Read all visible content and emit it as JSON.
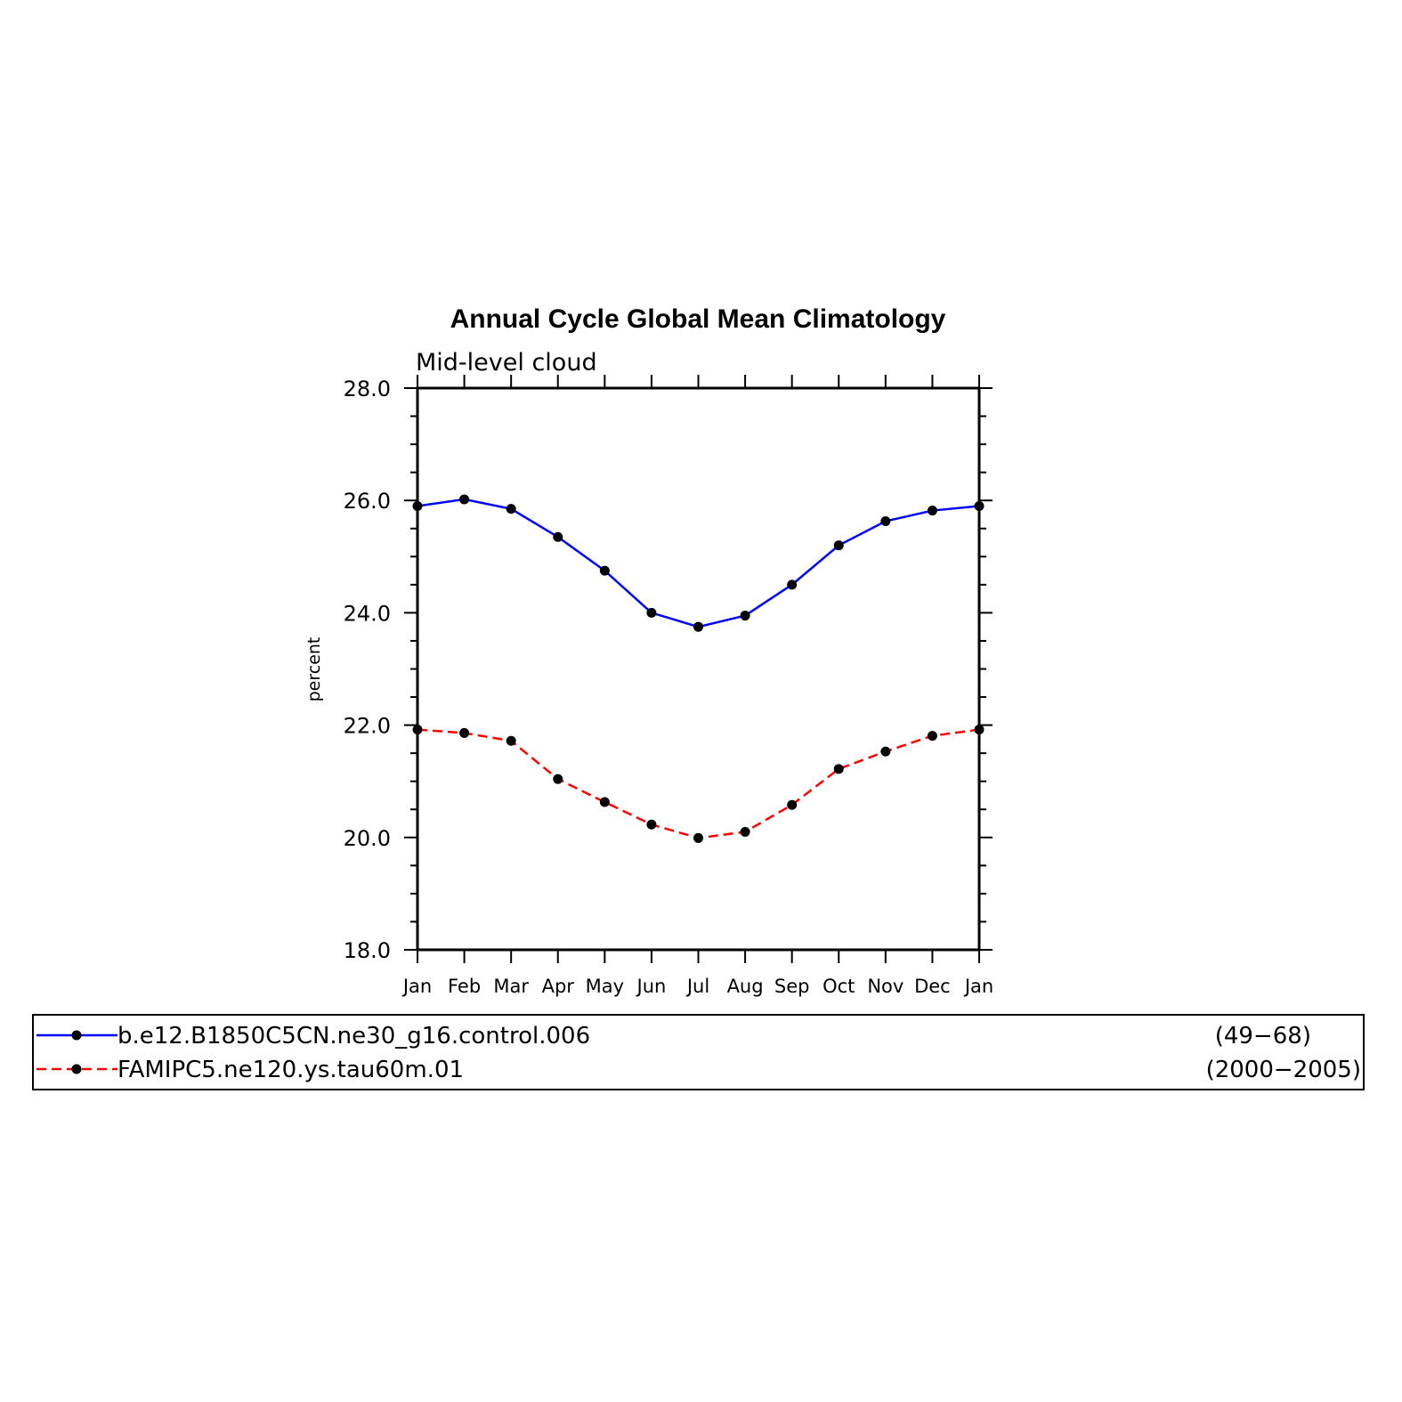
{
  "chart_data": {
    "type": "line",
    "title": "Annual Cycle Global Mean Climatology",
    "subtitle": "Mid-level cloud",
    "ylabel": "percent",
    "xlabel": "",
    "ylim": [
      18.0,
      28.0
    ],
    "yticks": [
      "18.0",
      "20.0",
      "22.0",
      "24.0",
      "26.0",
      "28.0"
    ],
    "categories": [
      "Jan",
      "Feb",
      "Mar",
      "Apr",
      "May",
      "Jun",
      "Jul",
      "Aug",
      "Sep",
      "Oct",
      "Nov",
      "Dec",
      "Jan"
    ],
    "series": [
      {
        "name": "b.e12.B1850C5CN.ne30_g16.control.006",
        "years": "(49−68)",
        "color": "#0000ff",
        "dash": "solid",
        "values": [
          25.9,
          26.02,
          25.85,
          25.35,
          24.75,
          24.0,
          23.75,
          23.95,
          24.5,
          25.2,
          25.63,
          25.82,
          25.9
        ]
      },
      {
        "name": "FAMIPC5.ne120.ys.tau60m.01",
        "years": "(2000−2005)",
        "color": "#ff0000",
        "dash": "dashed",
        "values": [
          21.92,
          21.86,
          21.72,
          21.04,
          20.63,
          20.23,
          19.99,
          20.1,
          20.58,
          21.22,
          21.53,
          21.81,
          21.92
        ]
      }
    ],
    "legend_position": "bottom",
    "grid": false,
    "marker_color": "#000000"
  }
}
